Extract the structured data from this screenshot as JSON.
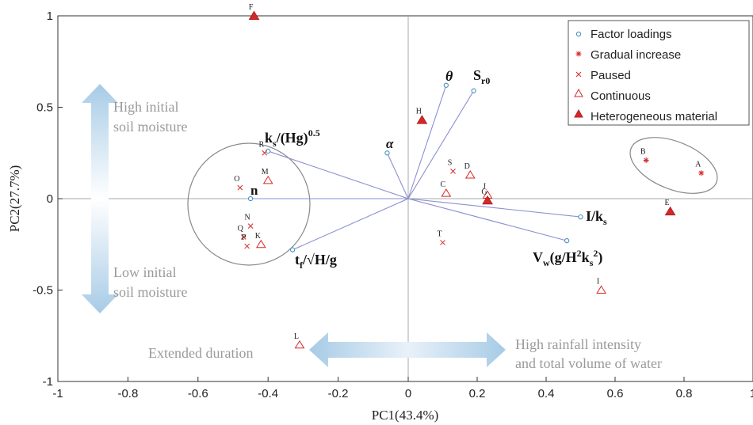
{
  "chart_data": {
    "type": "scatter",
    "xlabel": "PC1(43.4%)",
    "ylabel": "PC2(27.7%)",
    "xlim": [
      -1,
      1
    ],
    "ylim": [
      -1,
      1
    ],
    "xticks": [
      "-1",
      "-0.8",
      "-0.6",
      "-0.4",
      "-0.2",
      "0",
      "0.2",
      "0.4",
      "0.6",
      "0.8",
      "1"
    ],
    "yticks": [
      "1",
      "0.5",
      "0",
      "-0.5",
      "-1"
    ],
    "grid": false,
    "legend_position": "top-right",
    "colors": {
      "vector": "#8a8fd0",
      "loading": "#4a90c2",
      "sample": "#d62728",
      "circle": "#888888",
      "annotation": "#9a9a9a",
      "arrow": "#a7cbe6"
    },
    "legend": [
      {
        "label": "Factor loadings",
        "marker": "circle-open-blue"
      },
      {
        "label": "Gradual increase",
        "marker": "asterisk-red"
      },
      {
        "label": "Paused",
        "marker": "x-red"
      },
      {
        "label": "Continuous",
        "marker": "triangle-open-red"
      },
      {
        "label": "Heterogeneous material",
        "marker": "triangle-filled-red"
      }
    ],
    "loadings": [
      {
        "label": "θ",
        "x": 0.11,
        "y": 0.62
      },
      {
        "label": "S_r0",
        "x": 0.19,
        "y": 0.59
      },
      {
        "label": "α",
        "x": -0.06,
        "y": 0.25
      },
      {
        "label": "k_s/(Hg)^0.5",
        "x": -0.4,
        "y": 0.26
      },
      {
        "label": "n",
        "x": -0.45,
        "y": 0.0
      },
      {
        "label": "t_f/√H/g",
        "x": -0.33,
        "y": -0.28
      },
      {
        "label": "I/k_s",
        "x": 0.5,
        "y": -0.1
      },
      {
        "label": "V_w(g/H^2k_s^2)",
        "x": 0.46,
        "y": -0.23
      }
    ],
    "samples": [
      {
        "label": "F",
        "x": -0.44,
        "y": 1.0,
        "type": "Heterogeneous material"
      },
      {
        "label": "H",
        "x": 0.04,
        "y": 0.43,
        "type": "Heterogeneous material"
      },
      {
        "label": "B",
        "x": 0.69,
        "y": 0.21,
        "type": "Gradual increase"
      },
      {
        "label": "A",
        "x": 0.85,
        "y": 0.14,
        "type": "Gradual increase"
      },
      {
        "label": "E",
        "x": 0.76,
        "y": -0.07,
        "type": "Heterogeneous material"
      },
      {
        "label": "R",
        "x": -0.41,
        "y": 0.25,
        "type": "Paused"
      },
      {
        "label": "O",
        "x": -0.48,
        "y": 0.06,
        "type": "Paused"
      },
      {
        "label": "M",
        "x": -0.4,
        "y": 0.1,
        "type": "Continuous"
      },
      {
        "label": "S",
        "x": 0.13,
        "y": 0.15,
        "type": "Paused"
      },
      {
        "label": "D",
        "x": 0.18,
        "y": 0.13,
        "type": "Continuous"
      },
      {
        "label": "C",
        "x": 0.11,
        "y": 0.03,
        "type": "Continuous"
      },
      {
        "label": "J",
        "x": 0.23,
        "y": 0.02,
        "type": "Continuous"
      },
      {
        "label": "G",
        "x": 0.23,
        "y": -0.01,
        "type": "Heterogeneous material"
      },
      {
        "label": "N",
        "x": -0.45,
        "y": -0.15,
        "type": "Paused"
      },
      {
        "label": "Q",
        "x": -0.47,
        "y": -0.21,
        "type": "Paused"
      },
      {
        "label": "P",
        "x": -0.46,
        "y": -0.26,
        "type": "Paused"
      },
      {
        "label": "K",
        "x": -0.42,
        "y": -0.25,
        "type": "Continuous"
      },
      {
        "label": "T",
        "x": 0.1,
        "y": -0.24,
        "type": "Paused"
      },
      {
        "label": "I",
        "x": 0.56,
        "y": -0.5,
        "type": "Continuous"
      },
      {
        "label": "L",
        "x": -0.31,
        "y": -0.8,
        "type": "Continuous"
      }
    ],
    "annotations": {
      "top_left_1": "High initial",
      "top_left_2": "soil moisture",
      "bottom_left_1": "Low initial",
      "bottom_left_2": "soil moisture",
      "bottom_left_text": "Extended duration",
      "bottom_right_1": "High rainfall intensity",
      "bottom_right_2": "and total volume of water"
    }
  }
}
